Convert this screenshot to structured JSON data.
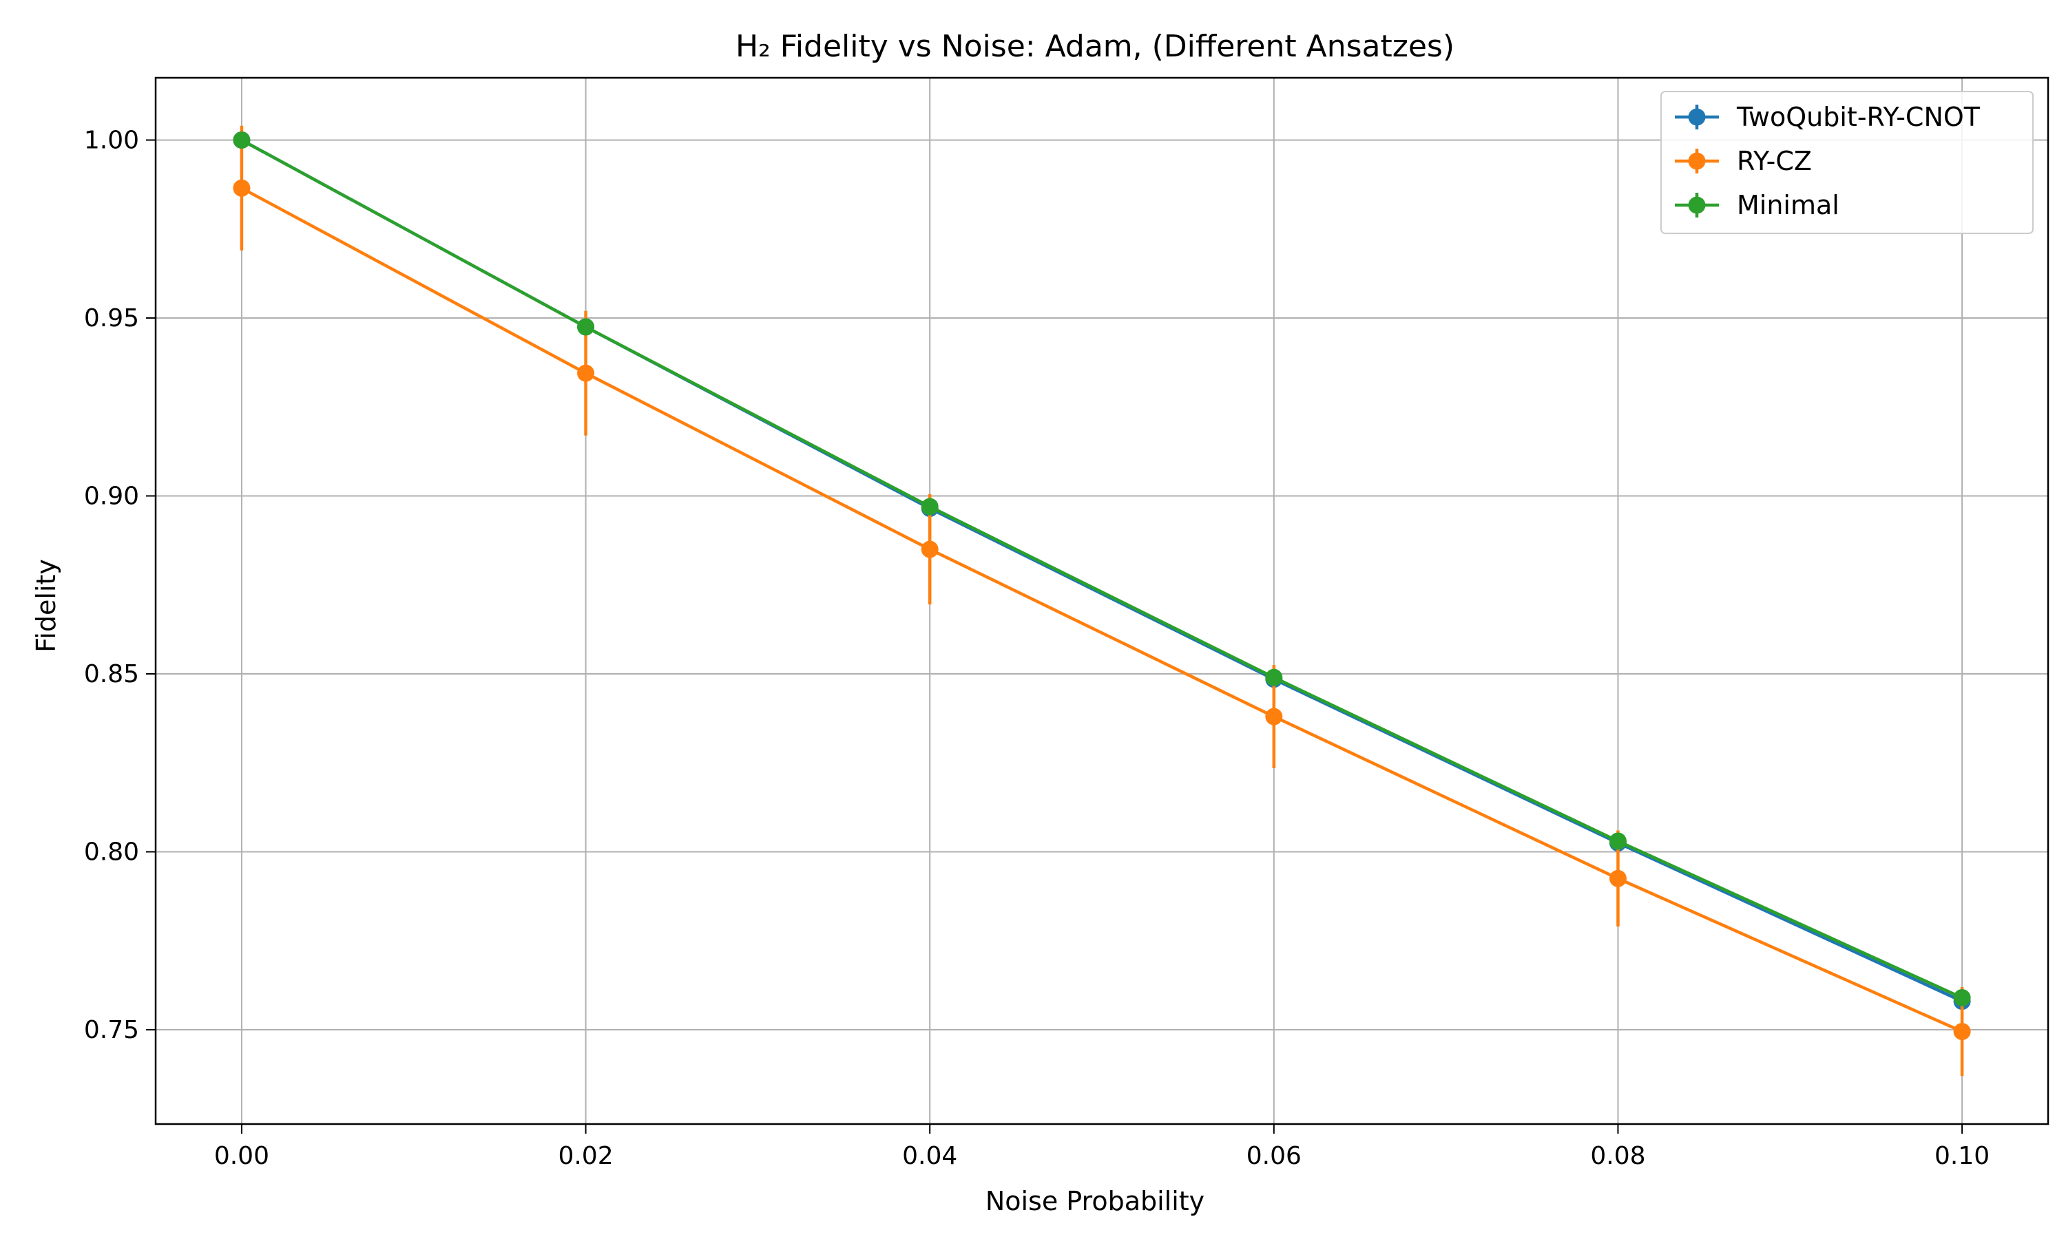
{
  "chart_data": {
    "type": "line",
    "title": "H₂ Fidelity vs Noise: Adam, (Different Ansatzes)",
    "xlabel": "Noise Probability",
    "ylabel": "Fidelity",
    "xlim": [
      -0.005,
      0.105
    ],
    "ylim": [
      0.7235,
      1.0175
    ],
    "xticks": [
      0.0,
      0.02,
      0.04,
      0.06,
      0.08,
      0.1
    ],
    "xtick_labels": [
      "0.00",
      "0.02",
      "0.04",
      "0.06",
      "0.08",
      "0.10"
    ],
    "yticks": [
      0.75,
      0.8,
      0.85,
      0.9,
      0.95,
      1.0
    ],
    "ytick_labels": [
      "0.75",
      "0.80",
      "0.85",
      "0.90",
      "0.95",
      "1.00"
    ],
    "grid": true,
    "legend_position": "top-right",
    "x": [
      0.0,
      0.02,
      0.04,
      0.06,
      0.08,
      0.1
    ],
    "series": [
      {
        "name": "TwoQubit-RY-CNOT",
        "color": "#1f77b4",
        "values": [
          1.0,
          0.9475,
          0.8965,
          0.8485,
          0.8025,
          0.758
        ],
        "errors": [
          0.0,
          0.0,
          0.0,
          0.0,
          0.0,
          0.0
        ]
      },
      {
        "name": "RY-CZ",
        "color": "#ff7f0e",
        "values": [
          0.9865,
          0.9345,
          0.885,
          0.838,
          0.7925,
          0.7495
        ],
        "errors": [
          0.0175,
          0.0175,
          0.0155,
          0.0145,
          0.0135,
          0.0125
        ]
      },
      {
        "name": "Minimal",
        "color": "#2ca02c",
        "values": [
          1.0,
          0.9475,
          0.897,
          0.849,
          0.803,
          0.759
        ],
        "errors": [
          0.0,
          0.0,
          0.0,
          0.0,
          0.0,
          0.0
        ]
      }
    ]
  }
}
